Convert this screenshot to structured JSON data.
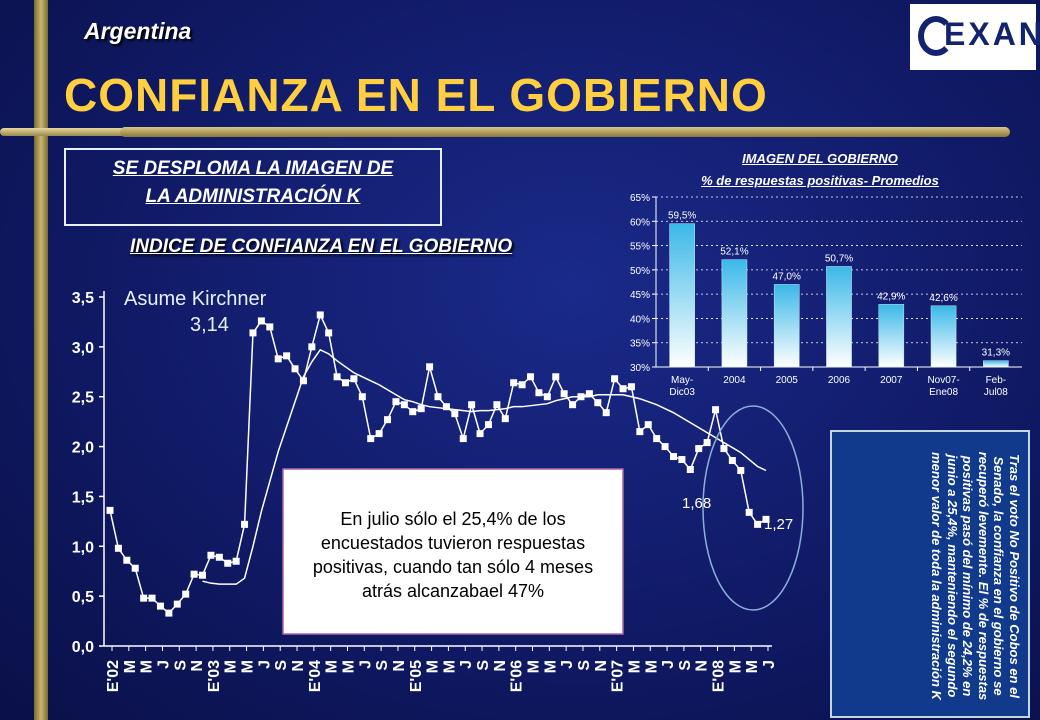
{
  "header": {
    "country": "Argentina",
    "title": "CONFIANZA EN EL GOBIERNO",
    "logo_text": "EXANTE"
  },
  "subtitle_box": {
    "line1": "SE DESPLOMA LA IMAGEN DE",
    "line2": "LA ADMINISTRACIÓN K"
  },
  "colors": {
    "title": "#ffcf40",
    "background": "#101a66",
    "bar_fill_top": "#3ab8e8",
    "bar_fill_bottom": "#ffffff",
    "index_line": "#ffffff"
  },
  "side_note": "Tras el voto No Positivo de Cobos en el Senado, la confianza en el gobierno se recuperó levemente. El % de respuestas positivas pasó del mínimo de 24,2% en junio a 25,4%, manteniendo el segundo menor valor de toda la administración K",
  "chart_data": [
    {
      "type": "line",
      "title": "INDICE DE CONFIANZA EN EL GOBIERNO",
      "ylim": [
        0,
        3.5
      ],
      "yticks": [
        "0,0",
        "0,5",
        "1,0",
        "1,5",
        "2,0",
        "2,5",
        "3,0",
        "3,5"
      ],
      "ytick_values": [
        0,
        0.5,
        1.0,
        1.5,
        2.0,
        2.5,
        3.0,
        3.5
      ],
      "x_ticks": [
        "E'02",
        "M",
        "M",
        "J",
        "S",
        "N",
        "E'03",
        "M",
        "M",
        "J",
        "S",
        "N",
        "E'04",
        "M",
        "M",
        "J",
        "S",
        "N",
        "E'05",
        "M",
        "M",
        "J",
        "S",
        "N",
        "E'06",
        "M",
        "M",
        "J",
        "S",
        "N",
        "E'07",
        "M",
        "M",
        "J",
        "S",
        "N",
        "E'08",
        "M",
        "M",
        "J"
      ],
      "series": [
        {
          "values": [
            1.36,
            0.98,
            0.86,
            0.78,
            0.48,
            0.48,
            0.4,
            0.33,
            0.42,
            0.52,
            0.72,
            0.71,
            0.91,
            0.89,
            0.83,
            0.85,
            1.22,
            3.14,
            3.26,
            3.2,
            2.88,
            2.91,
            2.78,
            2.66,
            3.0,
            3.32,
            3.14,
            2.7,
            2.64,
            2.68,
            2.5,
            2.08,
            2.13,
            2.27,
            2.45,
            2.42,
            2.35,
            2.38,
            2.8,
            2.5,
            2.4,
            2.33,
            2.08,
            2.42,
            2.13,
            2.22,
            2.42,
            2.28,
            2.64,
            2.62,
            2.7,
            2.54,
            2.5,
            2.7,
            2.53,
            2.42,
            2.5,
            2.53,
            2.44,
            2.34,
            2.68,
            2.58,
            2.6,
            2.15,
            2.22,
            2.08,
            2.0,
            1.9,
            1.87,
            1.77,
            1.98,
            2.04,
            2.37,
            1.98,
            1.86,
            1.76,
            1.34,
            1.22,
            1.27
          ]
        },
        {
          "values": [
            null,
            null,
            null,
            null,
            null,
            null,
            null,
            null,
            null,
            null,
            null,
            0.65,
            0.63,
            0.62,
            0.62,
            0.62,
            0.68,
            1.0,
            1.35,
            1.65,
            1.95,
            2.2,
            2.45,
            2.7,
            2.85,
            2.97,
            2.93,
            2.86,
            2.8,
            2.74,
            2.7,
            2.66,
            2.62,
            2.57,
            2.52,
            2.47,
            2.45,
            2.42,
            2.4,
            2.39,
            2.38,
            2.37,
            2.36,
            2.35,
            2.36,
            2.36,
            2.37,
            2.38,
            2.4,
            2.4,
            2.41,
            2.42,
            2.43,
            2.46,
            2.48,
            2.5,
            2.5,
            2.5,
            2.52,
            2.52,
            2.52,
            2.52,
            2.5,
            2.48,
            2.45,
            2.42,
            2.38,
            2.34,
            2.29,
            2.24,
            2.19,
            2.14,
            2.09,
            2.04,
            1.99,
            1.94,
            1.87,
            1.8,
            1.76
          ]
        }
      ],
      "annotations": {
        "peak_label": "Asume Kirchner",
        "peak_value": "3,14",
        "label_168": "1,68",
        "label_127": "1,27",
        "textbox": [
          "En julio sólo el 25,4% de los",
          "encuestados tuvieron respuestas",
          "positivas, cuando tan sólo 4 meses",
          "atrás alcanzabael 47%"
        ]
      }
    },
    {
      "type": "bar",
      "title": "IMAGEN DEL GOBIERNO",
      "subtitle": "% de respuestas positivas- Promedios",
      "categories": [
        [
          "May-",
          "Dic03"
        ],
        [
          "2004"
        ],
        [
          "2005"
        ],
        [
          "2006"
        ],
        [
          "2007"
        ],
        [
          "Nov07-",
          "Ene08"
        ],
        [
          "Feb-",
          "Jul08"
        ]
      ],
      "values": [
        59.5,
        52.1,
        47.0,
        50.7,
        42.9,
        42.6,
        31.3
      ],
      "value_labels": [
        "59,5%",
        "52,1%",
        "47,0%",
        "50,7%",
        "42,9%",
        "42,6%",
        "31,3%"
      ],
      "ylim": [
        30,
        65
      ],
      "yticks": [
        "30%",
        "35%",
        "40%",
        "45%",
        "50%",
        "55%",
        "60%",
        "65%"
      ],
      "ytick_values": [
        30,
        35,
        40,
        45,
        50,
        55,
        60,
        65
      ],
      "grid": true
    }
  ]
}
